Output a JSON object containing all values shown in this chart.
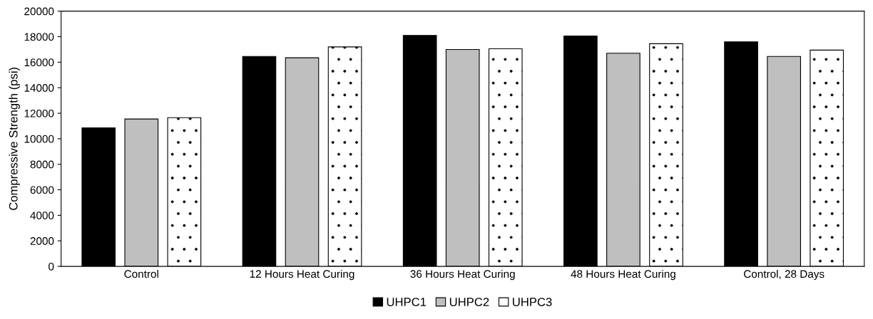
{
  "chart_data": {
    "type": "bar",
    "ylabel": "Compressive Strength (psi)",
    "categories": [
      "Control",
      "12 Hours Heat Curing",
      "36 Hours Heat Curing",
      "48 Hours Heat Curing",
      "Control, 28 Days"
    ],
    "series": [
      {
        "name": "UHPC1",
        "color": "#000000",
        "values": [
          10850,
          16450,
          18100,
          18050,
          17600
        ]
      },
      {
        "name": "UHPC2",
        "color": "#bfbfbf",
        "values": [
          11550,
          16350,
          17000,
          16700,
          16450
        ]
      },
      {
        "name": "UHPC3",
        "color": "#ffffff",
        "values": [
          11650,
          17200,
          17050,
          17450,
          16950
        ]
      }
    ],
    "ylim": [
      0,
      20000
    ],
    "yticks": [
      0,
      2000,
      4000,
      6000,
      8000,
      10000,
      12000,
      14000,
      16000,
      18000,
      20000
    ],
    "grid": false,
    "legend": "bottom"
  }
}
